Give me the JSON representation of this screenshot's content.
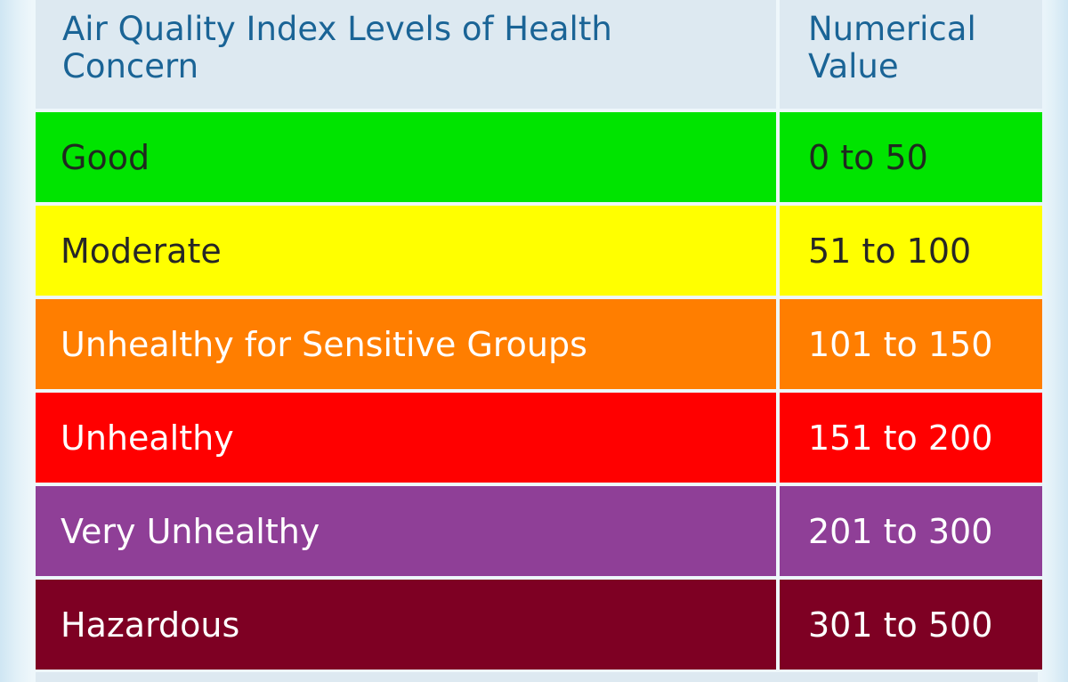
{
  "table": {
    "headers": {
      "level_line1": "Air Quality Index Levels of Health",
      "level_line2": "Concern",
      "value_line1": "Numerical",
      "value_line2": "Value"
    },
    "rows": [
      {
        "level": "Good",
        "value": "0 to 50",
        "color": "#00e400",
        "text_color": "#1f2a1f"
      },
      {
        "level": "Moderate",
        "value": "51 to 100",
        "color": "#ffff00",
        "text_color": "#262626"
      },
      {
        "level": "Unhealthy for Sensitive Groups",
        "value": "101 to 150",
        "color": "#ff7e00",
        "text_color": "#ffffff"
      },
      {
        "level": "Unhealthy",
        "value": "151 to 200",
        "color": "#ff0000",
        "text_color": "#ffffff"
      },
      {
        "level": "Very Unhealthy",
        "value": "201 to 300",
        "color": "#8f3f97",
        "text_color": "#ffffff"
      },
      {
        "level": "Hazardous",
        "value": "301 to 500",
        "color": "#7e0023",
        "text_color": "#ffffff"
      }
    ]
  }
}
